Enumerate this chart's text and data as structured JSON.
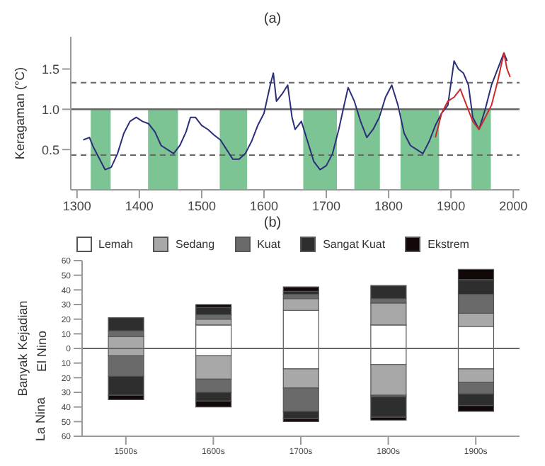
{
  "chart_data": [
    {
      "type": "line",
      "title": "(a)",
      "ylabel": "Keragaman (°C)",
      "xlim": [
        1290,
        2010
      ],
      "xticks": [
        1300,
        1400,
        1500,
        1600,
        1700,
        1800,
        1900,
        2000
      ],
      "ylim": [
        0,
        1.9
      ],
      "yticks": [
        0.5,
        {
          "value": 1,
          "label": "1.0"
        },
        1.5
      ],
      "grid": false,
      "marker": "none",
      "line_style": "solid",
      "series": [
        {
          "color": "#2b2f7a",
          "x": [
            1310,
            1320,
            1325,
            1335,
            1345,
            1355,
            1365,
            1375,
            1385,
            1395,
            1405,
            1415,
            1425,
            1435,
            1445,
            1455,
            1465,
            1475,
            1482,
            1490,
            1500,
            1510,
            1520,
            1530,
            1540,
            1550,
            1560,
            1570,
            1580,
            1590,
            1600,
            1610,
            1615,
            1620,
            1630,
            1638,
            1645,
            1650,
            1660,
            1670,
            1680,
            1690,
            1700,
            1710,
            1720,
            1730,
            1735,
            1745,
            1755,
            1765,
            1775,
            1785,
            1795,
            1805,
            1815,
            1825,
            1835,
            1845,
            1855,
            1865,
            1875,
            1885,
            1895,
            1905,
            1912,
            1920,
            1928,
            1935,
            1945,
            1955,
            1965,
            1975,
            1985,
            1990
          ],
          "values": [
            0.62,
            0.65,
            0.55,
            0.4,
            0.25,
            0.28,
            0.45,
            0.7,
            0.85,
            0.9,
            0.85,
            0.82,
            0.72,
            0.55,
            0.5,
            0.45,
            0.55,
            0.72,
            0.9,
            0.9,
            0.8,
            0.75,
            0.68,
            0.62,
            0.5,
            0.38,
            0.38,
            0.45,
            0.6,
            0.8,
            0.95,
            1.3,
            1.45,
            1.1,
            1.2,
            1.3,
            0.9,
            0.75,
            0.85,
            0.6,
            0.35,
            0.25,
            0.3,
            0.45,
            0.75,
            1.1,
            1.27,
            1.1,
            0.85,
            0.65,
            0.75,
            0.9,
            1.15,
            1.3,
            1.05,
            0.7,
            0.55,
            0.5,
            0.45,
            0.6,
            0.8,
            0.95,
            1.05,
            1.6,
            1.5,
            1.45,
            1.3,
            0.9,
            0.75,
            1.0,
            1.3,
            1.5,
            1.7,
            1.6
          ]
        },
        {
          "color": "#cc2a2a",
          "x": [
            1875,
            1885,
            1895,
            1905,
            1915,
            1925,
            1935,
            1945,
            1955,
            1965,
            1975,
            1985,
            1990,
            1995
          ],
          "values": [
            0.65,
            0.95,
            1.1,
            1.15,
            1.25,
            1.05,
            0.85,
            0.75,
            0.9,
            1.05,
            1.35,
            1.7,
            1.5,
            1.4
          ]
        }
      ],
      "ref_lines": [
        {
          "axis": "y",
          "value": 1.33,
          "line_style": "dashed",
          "color": "#666666"
        },
        {
          "axis": "y",
          "value": 1,
          "line_style": "solid",
          "color": "#666666"
        },
        {
          "axis": "y",
          "value": 0.43,
          "line_style": "dashed",
          "color": "#666666"
        }
      ],
      "bands": [
        {
          "axis": "x",
          "from": 1322,
          "to": 1354,
          "color": "#7dc495"
        },
        {
          "axis": "x",
          "from": 1414,
          "to": 1462,
          "color": "#7dc495"
        },
        {
          "axis": "x",
          "from": 1529,
          "to": 1573,
          "color": "#7dc495"
        },
        {
          "axis": "x",
          "from": 1663,
          "to": 1717,
          "color": "#7dc495"
        },
        {
          "axis": "x",
          "from": 1745,
          "to": 1786,
          "color": "#7dc495"
        },
        {
          "axis": "x",
          "from": 1819,
          "to": 1881,
          "color": "#7dc495"
        },
        {
          "axis": "x",
          "from": 1933,
          "to": 1964,
          "color": "#7dc495"
        }
      ]
    },
    {
      "type": "bar",
      "title": "(b)",
      "ylabel": "Banyak Kejadian",
      "annotations": [
        "El Nino",
        "La Nina"
      ],
      "categories": [
        "1500s",
        "1600s",
        "1700s",
        "1800s",
        "1900s"
      ],
      "stacked": true,
      "legend": "top",
      "grid": false,
      "ref_lines": [
        {
          "axis": "y",
          "value": 0,
          "line_style": "solid",
          "color": "#666666"
        }
      ],
      "ylim": [
        -60,
        60
      ],
      "yticks": [
        {
          "value": -60,
          "label": "60"
        },
        {
          "value": -50,
          "label": "50"
        },
        {
          "value": -40,
          "label": "40"
        },
        {
          "value": -30,
          "label": "30"
        },
        {
          "value": -20,
          "label": "20"
        },
        {
          "value": -10,
          "label": "10"
        },
        0,
        10,
        20,
        30,
        40,
        50,
        60
      ],
      "series": [
        {
          "name": "Lemah",
          "color": "#ffffff",
          "values": [
            0,
            16,
            26,
            16,
            15
          ]
        },
        {
          "name": "Sedang",
          "color": "#a8a8a8",
          "values": [
            8,
            4,
            8,
            15,
            9
          ]
        },
        {
          "name": "Kuat",
          "color": "#6a6a6a",
          "values": [
            4,
            3,
            3,
            3,
            13
          ]
        },
        {
          "name": "Sangat Kuat",
          "color": "#2e2e2e",
          "values": [
            9,
            5,
            2,
            9,
            10
          ]
        },
        {
          "name": "Ekstrem",
          "color": "#120808",
          "values": [
            0,
            2,
            3,
            0,
            7
          ]
        },
        {
          "color": "#ffffff",
          "values": [
            0,
            -5,
            -14,
            -11,
            -14
          ]
        },
        {
          "color": "#a8a8a8",
          "values": [
            -5,
            -16,
            -13,
            -21,
            -9
          ]
        },
        {
          "color": "#6a6a6a",
          "values": [
            -14,
            -9,
            -16,
            -1,
            -8
          ]
        },
        {
          "color": "#2e2e2e",
          "values": [
            -13,
            -6,
            -5,
            -14,
            -8
          ]
        },
        {
          "color": "#120808",
          "values": [
            -3,
            -4,
            -2,
            -2,
            -4
          ]
        }
      ]
    }
  ]
}
